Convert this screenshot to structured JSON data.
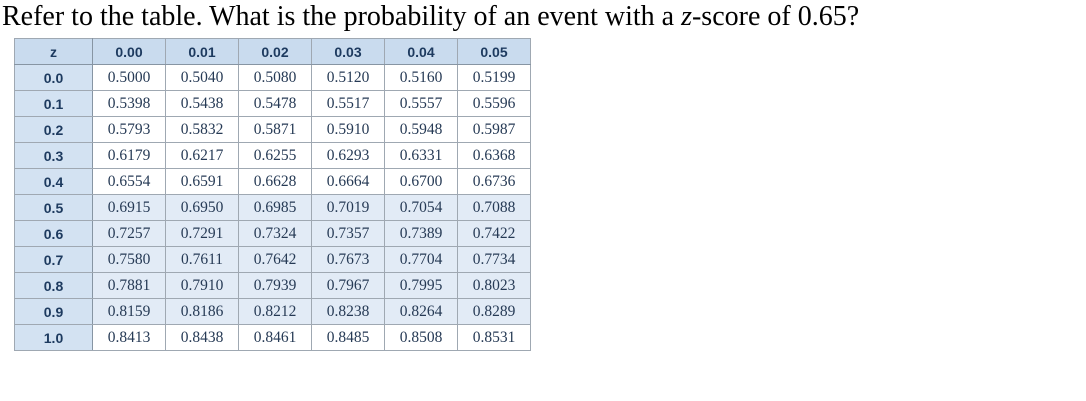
{
  "question": {
    "text_before_z": "Refer to the table. What is the probability of an event with a ",
    "z_term": "z",
    "text_after_z": "-score of 0.65?"
  },
  "table": {
    "header": [
      "z",
      "0.00",
      "0.01",
      "0.02",
      "0.03",
      "0.04",
      "0.05"
    ],
    "rows": [
      {
        "z": "0.0",
        "values": [
          "0.5000",
          "0.5040",
          "0.5080",
          "0.5120",
          "0.5160",
          "0.5199"
        ],
        "shaded": false
      },
      {
        "z": "0.1",
        "values": [
          "0.5398",
          "0.5438",
          "0.5478",
          "0.5517",
          "0.5557",
          "0.5596"
        ],
        "shaded": false
      },
      {
        "z": "0.2",
        "values": [
          "0.5793",
          "0.5832",
          "0.5871",
          "0.5910",
          "0.5948",
          "0.5987"
        ],
        "shaded": false
      },
      {
        "z": "0.3",
        "values": [
          "0.6179",
          "0.6217",
          "0.6255",
          "0.6293",
          "0.6331",
          "0.6368"
        ],
        "shaded": false
      },
      {
        "z": "0.4",
        "values": [
          "0.6554",
          "0.6591",
          "0.6628",
          "0.6664",
          "0.6700",
          "0.6736"
        ],
        "shaded": false
      },
      {
        "z": "0.5",
        "values": [
          "0.6915",
          "0.6950",
          "0.6985",
          "0.7019",
          "0.7054",
          "0.7088"
        ],
        "shaded": true
      },
      {
        "z": "0.6",
        "values": [
          "0.7257",
          "0.7291",
          "0.7324",
          "0.7357",
          "0.7389",
          "0.7422"
        ],
        "shaded": true
      },
      {
        "z": "0.7",
        "values": [
          "0.7580",
          "0.7611",
          "0.7642",
          "0.7673",
          "0.7704",
          "0.7734"
        ],
        "shaded": true
      },
      {
        "z": "0.8",
        "values": [
          "0.7881",
          "0.7910",
          "0.7939",
          "0.7967",
          "0.7995",
          "0.8023"
        ],
        "shaded": true
      },
      {
        "z": "0.9",
        "values": [
          "0.8159",
          "0.8186",
          "0.8212",
          "0.8238",
          "0.8264",
          "0.8289"
        ],
        "shaded": true
      },
      {
        "z": "1.0",
        "values": [
          "0.8413",
          "0.8438",
          "0.8461",
          "0.8485",
          "0.8508",
          "0.8531"
        ],
        "shaded": false
      }
    ],
    "colors": {
      "header_bg": "#c9dbee",
      "zcol_bg": "#d3e2f2",
      "band_bg": "#e2ebf6",
      "border": "#9fa8b2",
      "border_dark": "#8795a3",
      "header_text": "#1d3a5f",
      "data_text": "#263a55",
      "page_bg": "#ffffff"
    }
  }
}
